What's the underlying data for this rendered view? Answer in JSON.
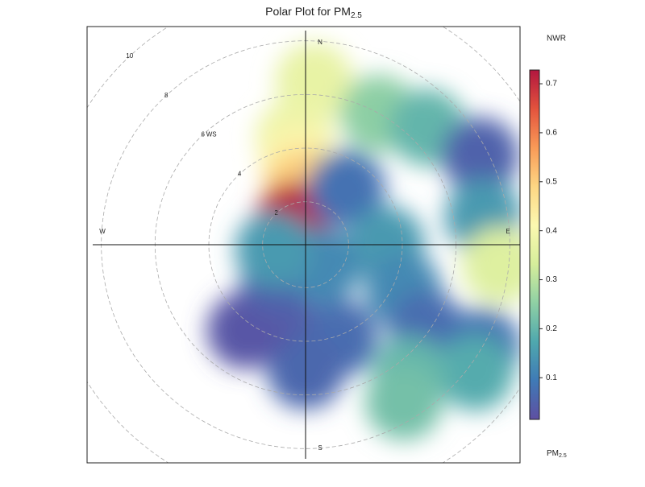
{
  "chart_data": {
    "type": "polar",
    "title": {
      "text": "Polar Plot for PM",
      "subscript": "2.5"
    },
    "compass": {
      "N": "N",
      "E": "E",
      "S": "S",
      "W": "W"
    },
    "rlim": [
      0.4,
      10
    ],
    "rticks": [
      2,
      4,
      6,
      8,
      10
    ],
    "r_label": "WS",
    "colorbar": {
      "title": "NWR",
      "label": {
        "text": "PM",
        "subscript": "2.5"
      },
      "clim": [
        0.015,
        0.728
      ],
      "ticks": [
        0.1,
        0.2,
        0.3,
        0.4,
        0.5,
        0.6,
        0.7
      ],
      "colors": [
        "#5e4fa2",
        "#3f7ab6",
        "#4fa8ae",
        "#8fd0a4",
        "#d6ee9b",
        "#fbf8b0",
        "#fdd683",
        "#f99a57",
        "#e3533d",
        "#b2163f"
      ]
    },
    "points": [
      {
        "wd": 3,
        "ws": 6.5,
        "value": 0.37
      },
      {
        "wd": 354,
        "ws": 4.4,
        "value": 0.38
      },
      {
        "wd": 355,
        "ws": 3.5,
        "value": 0.42
      },
      {
        "wd": 357,
        "ws": 2.5,
        "value": 0.5
      },
      {
        "wd": 334,
        "ws": 1.4,
        "value": 0.72
      },
      {
        "wd": 29,
        "ws": 6,
        "value": 0.25
      },
      {
        "wd": 46,
        "ws": 6.7,
        "value": 0.2
      },
      {
        "wd": 36,
        "ws": 3,
        "value": 0.08
      },
      {
        "wd": 63,
        "ws": 7.7,
        "value": 0.05
      },
      {
        "wd": 81,
        "ws": 7.1,
        "value": 0.15
      },
      {
        "wd": 96,
        "ws": 7.7,
        "value": 0.35
      },
      {
        "wd": 90,
        "ws": 3.4,
        "value": 0.15
      },
      {
        "wd": 115,
        "ws": 4.4,
        "value": 0.12
      },
      {
        "wd": 125,
        "ws": 5.9,
        "value": 0.07
      },
      {
        "wd": 120,
        "ws": 8,
        "value": 0.08
      },
      {
        "wd": 127,
        "ws": 8.3,
        "value": 0.18
      },
      {
        "wd": 141,
        "ws": 6.6,
        "value": 0.2
      },
      {
        "wd": 148,
        "ws": 7.3,
        "value": 0.22
      },
      {
        "wd": 160,
        "ws": 4.1,
        "value": 0.07
      },
      {
        "wd": 180,
        "ws": 5.1,
        "value": 0.06
      },
      {
        "wd": 207,
        "ws": 2.9,
        "value": 0.04
      },
      {
        "wd": 215,
        "ws": 4.3,
        "value": 0.03
      },
      {
        "wd": 217,
        "ws": 2,
        "value": 0.05
      },
      {
        "wd": 141,
        "ws": 1.4,
        "value": 0.12
      },
      {
        "wd": 261,
        "ws": 1.6,
        "value": 0.15
      }
    ]
  }
}
